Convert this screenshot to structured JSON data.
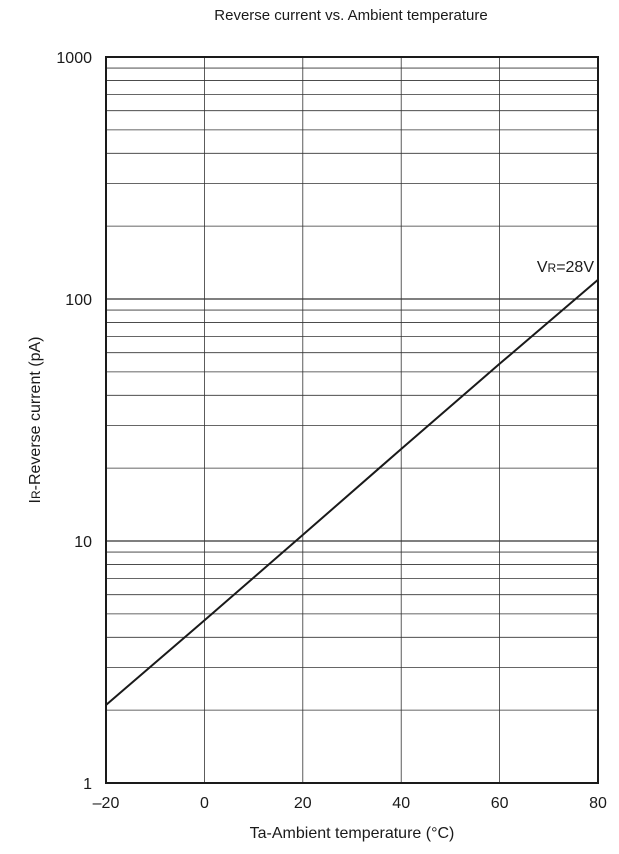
{
  "chart_data": {
    "type": "line",
    "title": "Reverse current vs. Ambient temperature",
    "xlabel": "Ta-Ambient temperature (°C)",
    "ylabel": {
      "main": "I",
      "sub": "R",
      "rest": "-Reverse current (pA)"
    },
    "xlim": [
      -20,
      80
    ],
    "ylim": [
      1,
      1000
    ],
    "y_scale": "log",
    "grid": true,
    "x_ticks": [
      {
        "value": -20,
        "label": "–20"
      },
      {
        "value": 0,
        "label": "0"
      },
      {
        "value": 20,
        "label": "20"
      },
      {
        "value": 40,
        "label": "40"
      },
      {
        "value": 60,
        "label": "60"
      },
      {
        "value": 80,
        "label": "80"
      }
    ],
    "y_ticks": [
      {
        "value": 1,
        "label": "1"
      },
      {
        "value": 10,
        "label": "10"
      },
      {
        "value": 100,
        "label": "100"
      },
      {
        "value": 1000,
        "label": "1000"
      }
    ],
    "series": [
      {
        "name": {
          "main": "V",
          "sub": "R",
          "rest": "=28V"
        },
        "color": "#1a1a1a",
        "x": [
          -20,
          0,
          20,
          40,
          60,
          80
        ],
        "y": [
          2.1,
          4.7,
          10.6,
          24,
          54,
          120
        ]
      }
    ]
  }
}
